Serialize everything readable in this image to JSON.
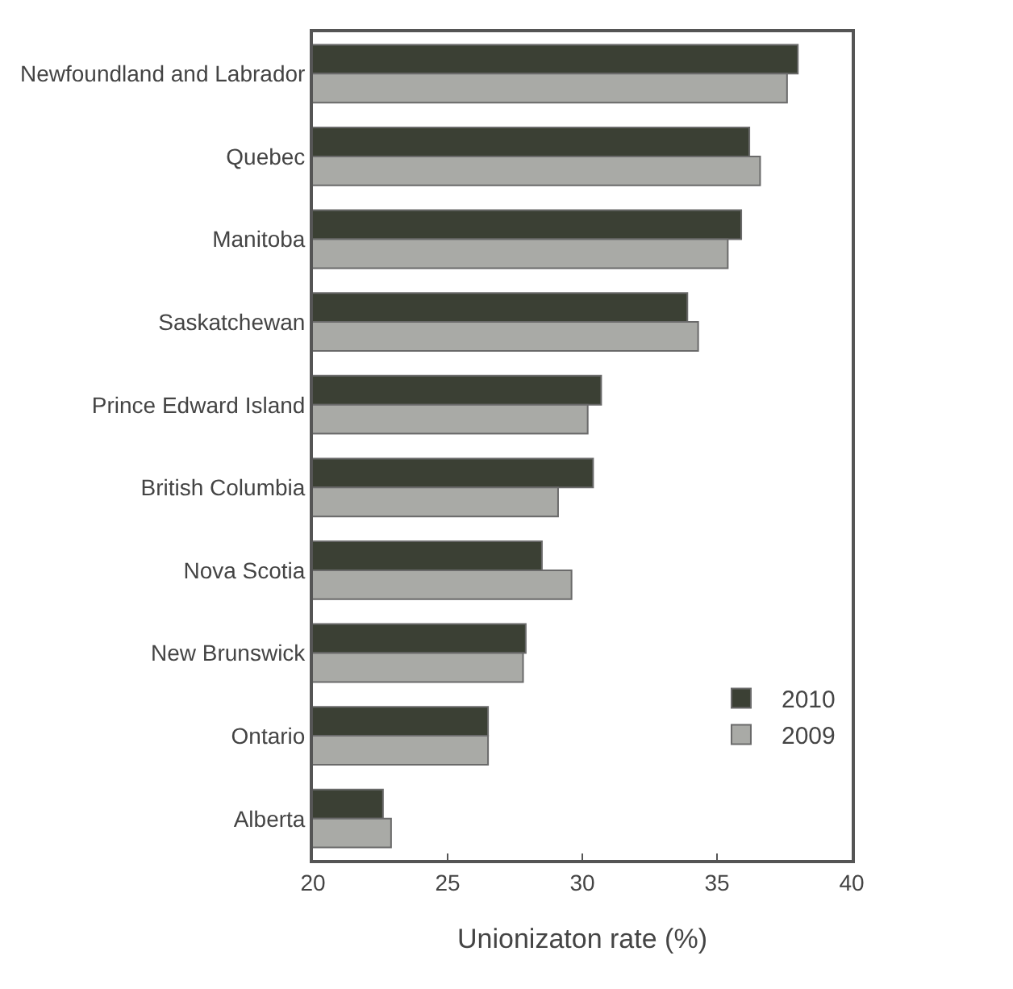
{
  "chart_data": {
    "type": "bar",
    "orientation": "horizontal",
    "xlabel": "Unionizaton rate (%)",
    "categories": [
      "Newfoundland and Labrador",
      "Quebec",
      "Manitoba",
      "Saskatchewan",
      "Prince Edward Island",
      "British Columbia",
      "Nova Scotia",
      "New Brunswick",
      "Ontario",
      "Alberta"
    ],
    "series": [
      {
        "name": "2010",
        "color": "#3b4034",
        "values": [
          38.0,
          36.2,
          35.9,
          33.9,
          30.7,
          30.4,
          28.5,
          27.9,
          26.5,
          22.6
        ]
      },
      {
        "name": "2009",
        "color": "#a9aaa6",
        "values": [
          37.6,
          36.6,
          35.4,
          34.3,
          30.2,
          29.1,
          29.6,
          27.8,
          26.5,
          22.9
        ]
      }
    ],
    "xlim": [
      20,
      40
    ],
    "xticks": [
      20,
      25,
      30,
      35,
      40
    ],
    "legend": "bottom right"
  }
}
